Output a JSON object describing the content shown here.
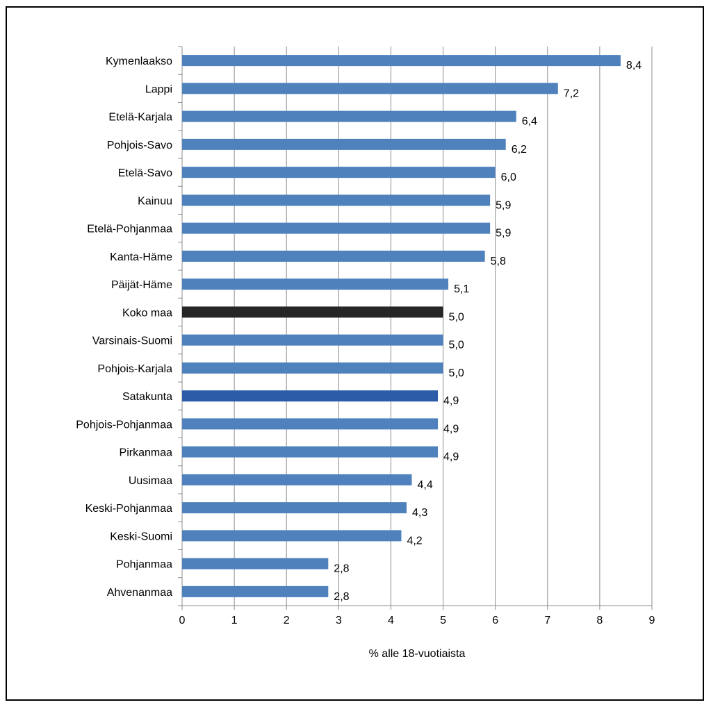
{
  "chart_data": {
    "type": "bar",
    "orientation": "horizontal",
    "categories": [
      "Kymenlaakso",
      "Lappi",
      "Etelä-Karjala",
      "Pohjois-Savo",
      "Etelä-Savo",
      "Kainuu",
      "Etelä-Pohjanmaa",
      "Kanta-Häme",
      "Päijät-Häme",
      "Koko maa",
      "Varsinais-Suomi",
      "Pohjois-Karjala",
      "Satakunta",
      "Pohjois-Pohjanmaa",
      "Pirkanmaa",
      "Uusimaa",
      "Keski-Pohjanmaa",
      "Keski-Suomi",
      "Pohjanmaa",
      "Ahvenanmaa"
    ],
    "values": [
      8.4,
      7.2,
      6.4,
      6.2,
      6.0,
      5.9,
      5.9,
      5.8,
      5.1,
      5.0,
      5.0,
      5.0,
      4.9,
      4.9,
      4.9,
      4.4,
      4.3,
      4.2,
      2.8,
      2.8
    ],
    "value_labels": [
      "8,4",
      "7,2",
      "6,4",
      "6,2",
      "6,0",
      "5,9",
      "5,9",
      "5,8",
      "5,1",
      "5,0",
      "5,0",
      "5,0",
      "4,9",
      "4,9",
      "4,9",
      "4,4",
      "4,3",
      "4,2",
      "2,8",
      "2,8"
    ],
    "bar_colors": [
      "#4f81bd",
      "#4f81bd",
      "#4f81bd",
      "#4f81bd",
      "#4f81bd",
      "#4f81bd",
      "#4f81bd",
      "#4f81bd",
      "#4f81bd",
      "#262626",
      "#4f81bd",
      "#4f81bd",
      "#2c5ca8",
      "#4f81bd",
      "#4f81bd",
      "#4f81bd",
      "#4f81bd",
      "#4f81bd",
      "#4f81bd",
      "#4f81bd"
    ],
    "xlabel": "% alle 18-vuotiaista",
    "xlim": [
      0,
      9
    ],
    "xticks": [
      "0",
      "1",
      "2",
      "3",
      "4",
      "5",
      "6",
      "7",
      "8",
      "9"
    ],
    "grid": "vertical",
    "legend": "none",
    "gridline_color": "#8c8c8c"
  }
}
